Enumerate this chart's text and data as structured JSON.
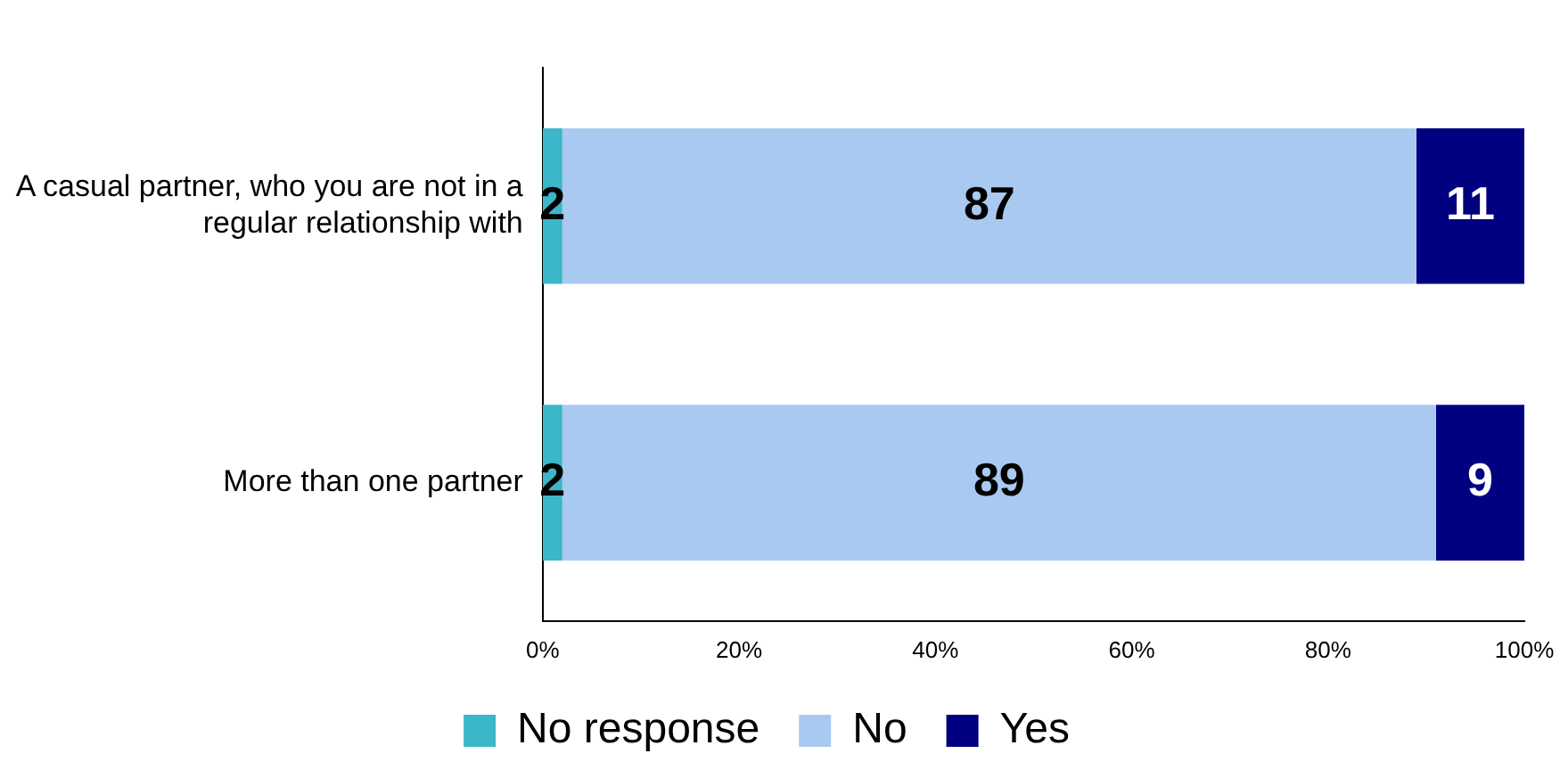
{
  "chart_data": {
    "type": "bar",
    "orientation": "horizontal",
    "stacked": true,
    "categories": [
      "A casual partner, who you are not in a regular relationship with",
      "More than one partner"
    ],
    "series": [
      {
        "name": "No response",
        "color": "#3cb6c9",
        "values": [
          2,
          2
        ]
      },
      {
        "name": "No",
        "color": "#a9c9f0",
        "values": [
          87,
          89
        ]
      },
      {
        "name": "Yes",
        "color": "#000080",
        "values": [
          11,
          9
        ]
      }
    ],
    "xlim": [
      0,
      100
    ],
    "xticks": [
      {
        "value": 0,
        "label": "0%"
      },
      {
        "value": 20,
        "label": "20%"
      },
      {
        "value": 40,
        "label": "40%"
      },
      {
        "value": 60,
        "label": "60%"
      },
      {
        "value": 80,
        "label": "80%"
      },
      {
        "value": 100,
        "label": "100%"
      }
    ],
    "data_labels": true,
    "grid": false,
    "legend": "bottom"
  }
}
